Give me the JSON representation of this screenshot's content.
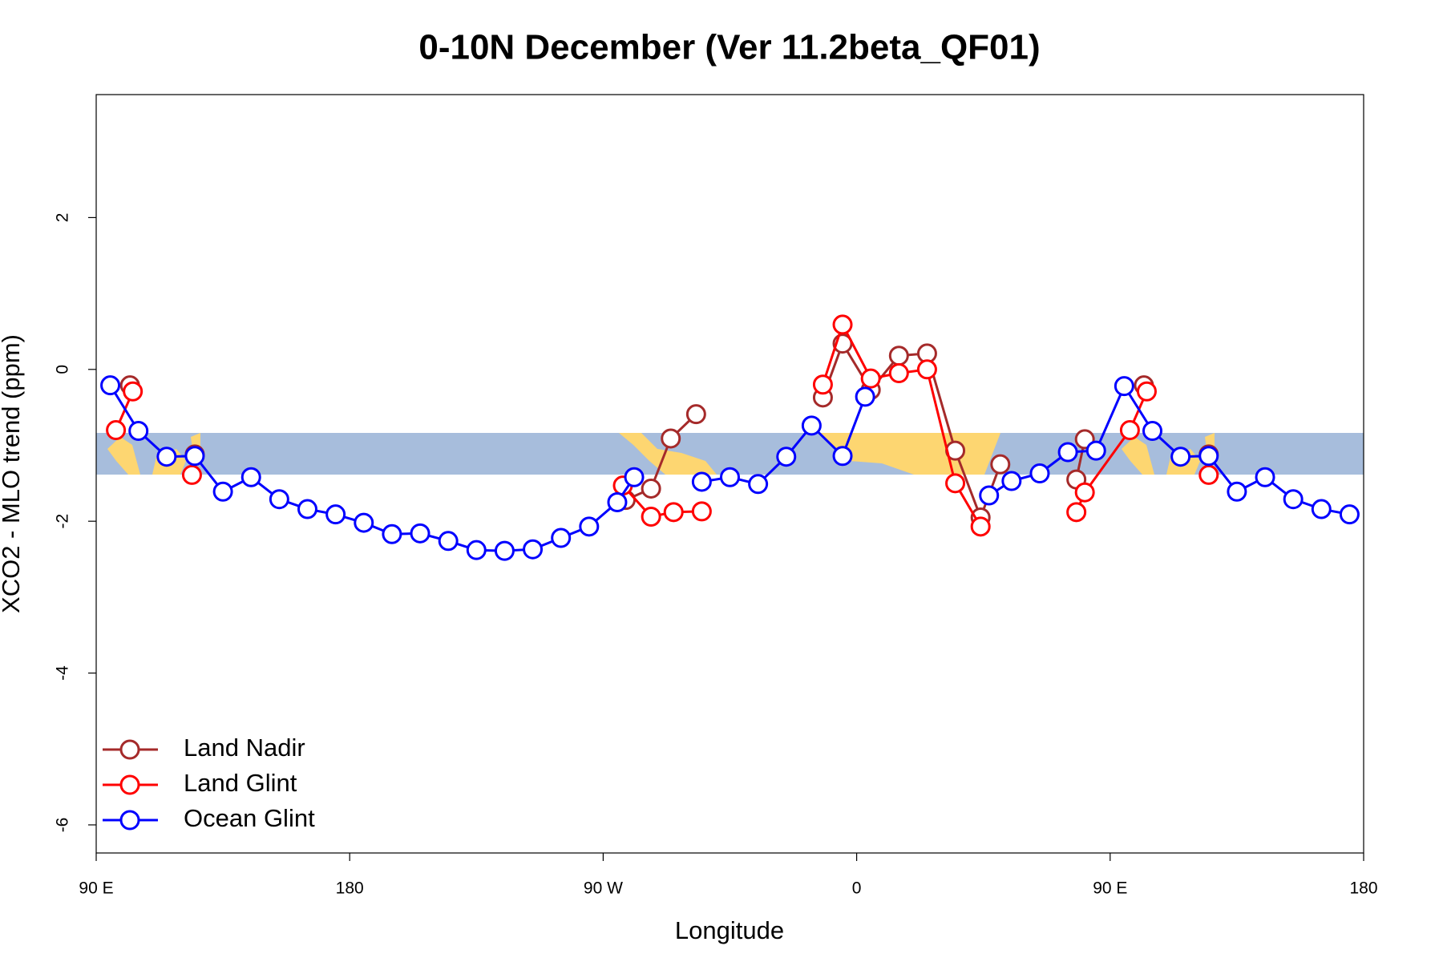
{
  "chart_data": {
    "type": "line",
    "title": "0-10N December (Ver 11.2beta_QF01)",
    "x_label": "Longitude",
    "y_label": "XCO2 - MLO trend (ppm)",
    "xlim": [
      90,
      540
    ],
    "ylim": [
      -6.37,
      3.62
    ],
    "xticks": [
      {
        "value": 90,
        "label": "90 E"
      },
      180,
      {
        "value": 270,
        "label": "90 W"
      },
      {
        "value": 360,
        "label": "0"
      },
      {
        "value": 450,
        "label": "90 E"
      },
      {
        "value": 540,
        "label": "180"
      }
    ],
    "yticks": [
      -6,
      -4,
      -2,
      0,
      2
    ],
    "legend": "bottomleft",
    "series": [
      {
        "name": "Land Nadir",
        "color": "#a52a2a",
        "x": [
          102,
          null,
          125,
          null,
          278,
          287,
          294,
          303,
          null,
          348,
          355,
          365,
          375,
          385,
          395,
          404,
          411,
          null,
          438,
          441,
          null,
          462,
          null,
          485
        ],
        "values": [
          -0.21,
          null,
          -1.12,
          null,
          -1.72,
          -1.57,
          -0.91,
          -0.59,
          null,
          -0.37,
          0.34,
          -0.27,
          0.18,
          0.21,
          -1.07,
          -1.95,
          -1.25,
          null,
          -1.45,
          -0.92,
          null,
          -0.21,
          null,
          -1.12
        ]
      },
      {
        "name": "Land Glint",
        "color": "#ff0000",
        "x": [
          97,
          103,
          null,
          124,
          null,
          277,
          287,
          295,
          305,
          null,
          348,
          355,
          365,
          375,
          385,
          395,
          404,
          null,
          438,
          441,
          457,
          463,
          null,
          485
        ],
        "values": [
          -0.8,
          -0.29,
          null,
          -1.39,
          null,
          -1.53,
          -1.94,
          -1.88,
          -1.87,
          null,
          -0.2,
          0.59,
          -0.12,
          -0.05,
          0.0,
          -1.5,
          -2.07,
          null,
          -1.88,
          -1.62,
          -0.8,
          -0.29,
          null,
          -1.39
        ]
      },
      {
        "name": "Ocean Glint",
        "color": "#0000ff",
        "x": [
          95,
          105,
          115,
          125,
          135,
          145,
          155,
          165,
          175,
          185,
          195,
          205,
          215,
          225,
          235,
          245,
          255,
          265,
          275,
          281,
          null,
          305,
          315,
          325,
          335,
          344,
          355,
          363,
          null,
          407,
          415,
          425,
          435,
          445,
          455,
          465,
          475,
          485,
          495,
          505,
          515,
          525,
          535
        ],
        "values": [
          -0.21,
          -0.81,
          -1.15,
          -1.14,
          -1.61,
          -1.42,
          -1.71,
          -1.84,
          -1.91,
          -2.02,
          -2.17,
          -2.16,
          -2.26,
          -2.38,
          -2.39,
          -2.37,
          -2.22,
          -2.07,
          -1.75,
          -1.42,
          null,
          -1.48,
          -1.42,
          -1.51,
          -1.15,
          -0.74,
          -1.14,
          -0.36,
          null,
          -1.66,
          -1.47,
          -1.37,
          -1.09,
          -1.07,
          -0.22,
          -0.81,
          -1.15,
          -1.14,
          -1.61,
          -1.42,
          -1.71,
          -1.84,
          -1.91
        ]
      }
    ]
  }
}
